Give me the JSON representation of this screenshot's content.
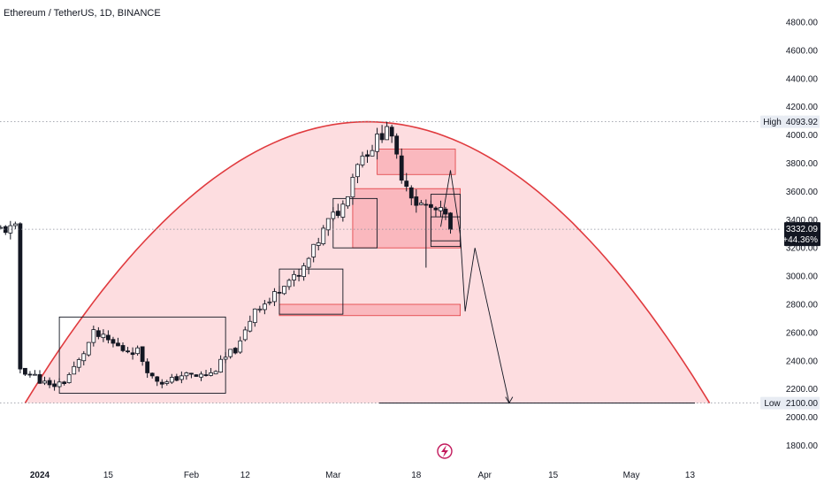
{
  "chart_title": "Ethereum / TetherUS, 1D, BINANCE",
  "price_axis": {
    "ticks": [
      "4800.00",
      "4600.00",
      "4400.00",
      "4200.00",
      "4000.00",
      "3800.00",
      "3600.00",
      "3400.00",
      "3200.00",
      "3000.00",
      "2800.00",
      "2600.00",
      "2400.00",
      "2200.00",
      "2000.00",
      "1800.00"
    ]
  },
  "time_axis": {
    "ticks": [
      {
        "label": "2024",
        "bold": true
      },
      {
        "label": "15",
        "bold": false
      },
      {
        "label": "Feb",
        "bold": false
      },
      {
        "label": "12",
        "bold": false
      },
      {
        "label": "Mar",
        "bold": false
      },
      {
        "label": "18",
        "bold": false
      },
      {
        "label": "Apr",
        "bold": false
      },
      {
        "label": "15",
        "bold": false
      },
      {
        "label": "May",
        "bold": false
      },
      {
        "label": "13",
        "bold": false
      }
    ]
  },
  "markers": {
    "high": {
      "label": "High",
      "value": "4093.92"
    },
    "low": {
      "label": "Low",
      "value": "2100.00"
    },
    "last_price": {
      "value": "3332.09",
      "change": "+44.36%"
    }
  },
  "colors": {
    "up_candle": "#ffffff",
    "down_candle": "#131722",
    "arc_stroke": "#e03a3e",
    "arc_fill": "rgba(242, 54, 69, 0.17)",
    "zone_fill": "rgba(242, 54, 69, 0.22)",
    "zone_stroke": "#e03a3e",
    "bolt_icon": "#c2185b"
  },
  "logo_icon": "lightning-bolt-icon",
  "chart_data": {
    "type": "candlestick",
    "title": "Ethereum / TetherUS, 1D, BINANCE",
    "symbol": "ETHUSDT",
    "interval": "1D",
    "exchange": "BINANCE",
    "y_range": [
      1700,
      4900
    ],
    "x_range": [
      "2023-12-26",
      "2024-05-24"
    ],
    "high": 4093.92,
    "low": 2100.0,
    "last_close": 3332.09,
    "closes": [
      [
        "2023-12-28",
        2345
      ],
      [
        "2023-12-31",
        2290
      ],
      [
        "2024-01-03",
        2215
      ],
      [
        "2024-01-06",
        2255
      ],
      [
        "2024-01-09",
        2395
      ],
      [
        "2024-01-12",
        2590
      ],
      [
        "2024-01-15",
        2540
      ],
      [
        "2024-01-18",
        2480
      ],
      [
        "2024-01-21",
        2470
      ],
      [
        "2024-01-24",
        2280
      ],
      [
        "2024-01-27",
        2240
      ],
      [
        "2024-01-30",
        2300
      ],
      [
        "2024-02-02",
        2290
      ],
      [
        "2024-02-05",
        2305
      ],
      [
        "2024-02-08",
        2420
      ],
      [
        "2024-02-11",
        2515
      ],
      [
        "2024-02-14",
        2780
      ],
      [
        "2024-02-17",
        2820
      ],
      [
        "2024-02-20",
        2965
      ],
      [
        "2024-02-23",
        2990
      ],
      [
        "2024-02-26",
        3185
      ],
      [
        "2024-02-29",
        3385
      ],
      [
        "2024-03-03",
        3500
      ],
      [
        "2024-03-06",
        3820
      ],
      [
        "2024-03-09",
        3920
      ],
      [
        "2024-03-12",
        4060
      ],
      [
        "2024-03-15",
        3720
      ],
      [
        "2024-03-18",
        3520
      ],
      [
        "2024-03-21",
        3480
      ],
      [
        "2024-03-24",
        3430
      ],
      [
        "2024-03-25",
        3332.09
      ]
    ]
  }
}
